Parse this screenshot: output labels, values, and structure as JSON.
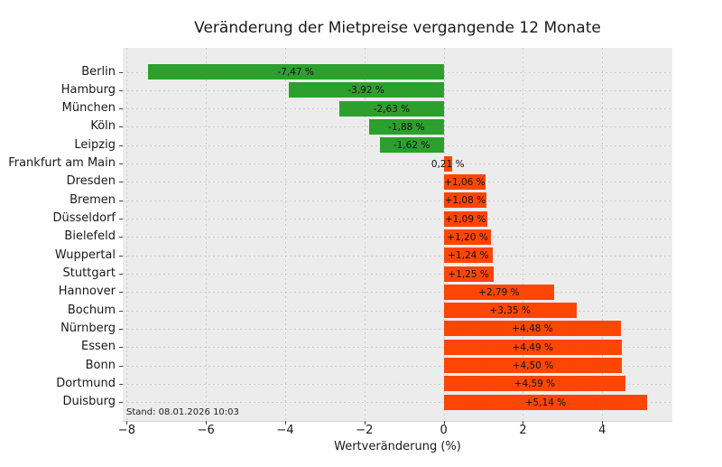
{
  "chart_data": {
    "type": "bar",
    "orientation": "horizontal",
    "title": "Veränderung der Mietpreise vergangende 12 Monate",
    "xlabel": "Wertveränderung (%)",
    "ylabel": "",
    "categories": [
      "Berlin",
      "Hamburg",
      "München",
      "Köln",
      "Leipzig",
      "Frankfurt am Main",
      "Dresden",
      "Bremen",
      "Düsseldorf",
      "Bielefeld",
      "Wuppertal",
      "Stuttgart",
      "Hannover",
      "Bochum",
      "Nürnberg",
      "Essen",
      "Bonn",
      "Dortmund",
      "Duisburg"
    ],
    "values": [
      -7.47,
      -3.92,
      -2.63,
      -1.88,
      -1.62,
      0.21,
      1.06,
      1.08,
      1.09,
      1.2,
      1.24,
      1.25,
      2.79,
      3.35,
      4.48,
      4.49,
      4.5,
      4.59,
      5.14
    ],
    "value_labels": [
      "-7,47 %",
      "-3,92 %",
      "-2,63 %",
      "-1,88 %",
      "-1,62 %",
      "0,21 %",
      "+1,06 %",
      "+1,08 %",
      "+1,09 %",
      "+1,20 %",
      "+1,24 %",
      "+1,25 %",
      "+2,79 %",
      "+3,35 %",
      "+4,48 %",
      "+4,49 %",
      "+4,50 %",
      "+4,59 %",
      "+5,14 %"
    ],
    "xticks": [
      -8,
      -6,
      -4,
      -2,
      0,
      2,
      4
    ],
    "xtick_labels": [
      "−8",
      "−6",
      "−4",
      "−2",
      "0",
      "2",
      "4"
    ],
    "xlim": [
      -8.1,
      5.77
    ],
    "grid": true,
    "legend": "none",
    "annotation": "Stand: 08.01.2026 10:03",
    "colors": {
      "negative_bar": "#2ca02c",
      "positive_bar": "#ff4500",
      "plot_background": "#ececec",
      "figure_background": "#ffffff"
    }
  }
}
